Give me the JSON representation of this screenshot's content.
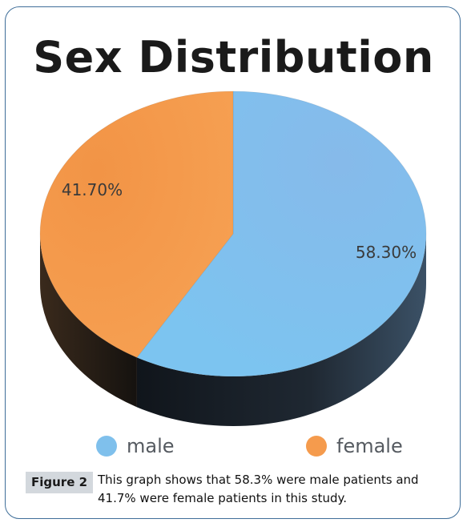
{
  "chart_data": {
    "type": "pie",
    "title": "Sex Distribution",
    "slices": [
      {
        "label": "male",
        "value": 58.3,
        "display": "58.30%",
        "color": "#7fc0ec"
      },
      {
        "label": "female",
        "value": 41.7,
        "display": "41.70%",
        "color": "#f59b4d"
      }
    ],
    "legend_position": "bottom"
  },
  "caption": {
    "label": "Figure 2",
    "text": "This graph shows that 58.3% were male patients and 41.7% were female patients in this study."
  }
}
